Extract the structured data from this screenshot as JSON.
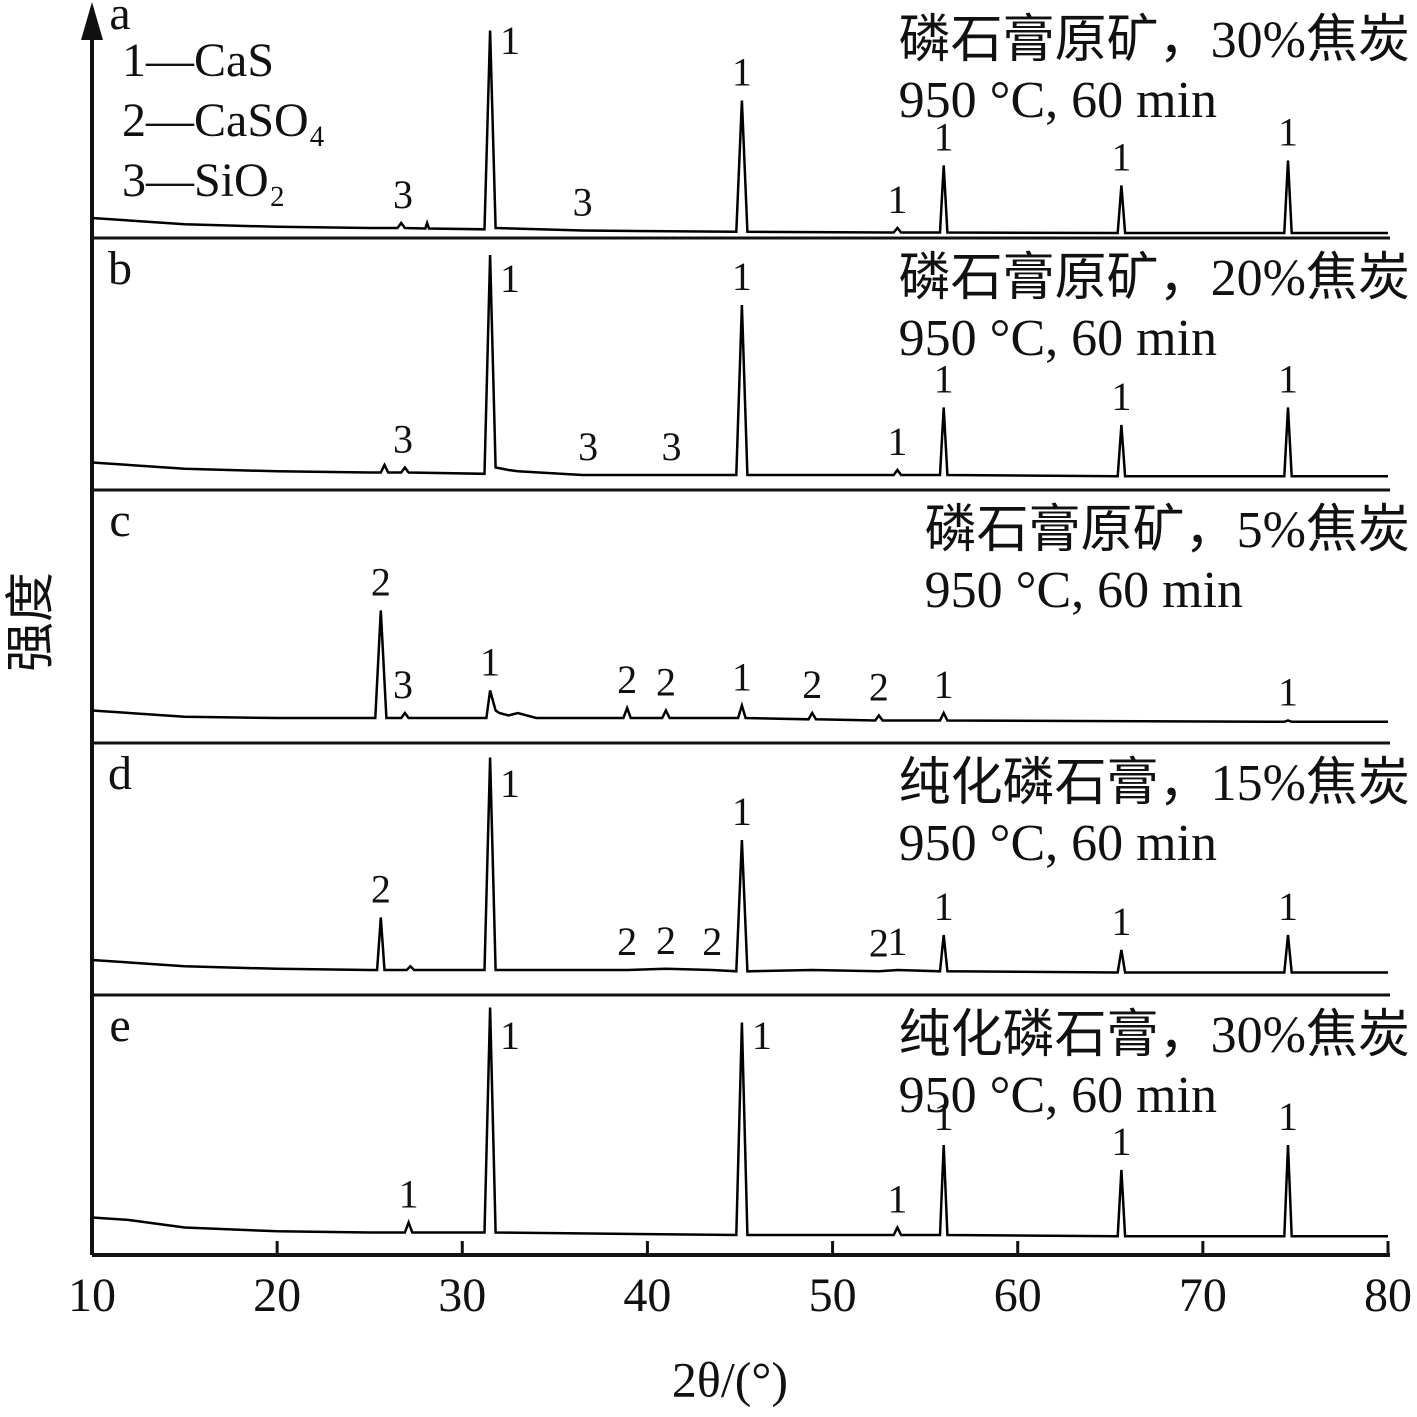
{
  "chart_data": {
    "type": "line",
    "xlabel": "2θ/(°)",
    "ylabel": "强度",
    "xlim": [
      10,
      80
    ],
    "xticks": [
      10,
      20,
      30,
      40,
      50,
      60,
      70,
      80
    ],
    "ylim": [
      0,
      100
    ],
    "grid": false,
    "legend": [
      "1—CaS",
      "2—CaSO₄",
      "3—SiO₂"
    ],
    "series": [
      {
        "name": "a",
        "color": "#000000",
        "conditions": [
          "磷石膏原矿，30%焦炭",
          "950 °C, 60 min"
        ],
        "x": [
          10,
          12,
          15,
          20,
          25,
          26.5,
          26.7,
          26.9,
          28,
          28.1,
          28.2,
          31.2,
          31.5,
          31.8,
          36.5,
          44.8,
          45.1,
          45.4,
          53.3,
          53.5,
          53.7,
          55.8,
          56.0,
          56.2,
          65.4,
          65.6,
          65.8,
          74.4,
          74.6,
          74.8,
          80
        ],
        "values": [
          8,
          7,
          5.5,
          4.5,
          4,
          4,
          6,
          4,
          3.8,
          6,
          3.8,
          3.5,
          83,
          4,
          3,
          2.5,
          55,
          2.5,
          2.2,
          4,
          2.2,
          2.2,
          29,
          2.2,
          2,
          21,
          2,
          2,
          31,
          2,
          2
        ],
        "peaks": [
          {
            "x": 26.8,
            "text": "3"
          },
          {
            "x": 31.5,
            "text": "1"
          },
          {
            "x": 36.5,
            "text": "3"
          },
          {
            "x": 45.1,
            "text": "1"
          },
          {
            "x": 53.5,
            "text": "1"
          },
          {
            "x": 56.0,
            "text": "1"
          },
          {
            "x": 65.6,
            "text": "1"
          },
          {
            "x": 74.6,
            "text": "1"
          }
        ]
      },
      {
        "name": "b",
        "color": "#000000",
        "conditions": [
          "磷石膏原矿，20%焦炭",
          "950 °C, 60 min"
        ],
        "x": [
          10,
          12,
          15,
          20,
          25,
          25.6,
          25.8,
          26,
          26.7,
          26.9,
          27.1,
          31.2,
          31.5,
          31.8,
          32.5,
          33,
          36.5,
          41.5,
          44.8,
          45.1,
          45.4,
          53.3,
          53.5,
          53.7,
          55.8,
          56.0,
          56.2,
          65.4,
          65.6,
          65.8,
          74.4,
          74.6,
          74.8,
          80
        ],
        "values": [
          11,
          10,
          8.5,
          7.5,
          7,
          7,
          10,
          7,
          7,
          9,
          7,
          6.5,
          94,
          9,
          8,
          7.5,
          6,
          6,
          6,
          74,
          6,
          6,
          8,
          6,
          6,
          33,
          6,
          5.5,
          26,
          5.5,
          5.5,
          33,
          5.5,
          5.5
        ],
        "peaks": [
          {
            "x": 26.8,
            "text": "3"
          },
          {
            "x": 31.5,
            "text": "1"
          },
          {
            "x": 36.8,
            "text": "3"
          },
          {
            "x": 41.3,
            "text": "3"
          },
          {
            "x": 45.1,
            "text": "1"
          },
          {
            "x": 53.5,
            "text": "1"
          },
          {
            "x": 56.0,
            "text": "1"
          },
          {
            "x": 65.6,
            "text": "1"
          },
          {
            "x": 74.6,
            "text": "1"
          }
        ]
      },
      {
        "name": "c",
        "color": "#000000",
        "conditions": [
          "磷石膏原矿，5%焦炭",
          "950 °C, 60 min"
        ],
        "x": [
          10,
          12,
          15,
          20,
          23,
          25.3,
          25.6,
          25.9,
          26.7,
          26.9,
          27.1,
          31.3,
          31.5,
          31.8,
          32,
          32.5,
          33,
          34,
          38.7,
          38.9,
          39.1,
          40.8,
          41,
          41.2,
          43.5,
          44.9,
          45.1,
          45.3,
          48.7,
          48.9,
          49.1,
          52.3,
          52.5,
          52.7,
          55.8,
          56,
          56.2,
          74.4,
          74.6,
          74.8,
          80
        ],
        "values": [
          13,
          12,
          10.5,
          10,
          10,
          10,
          53,
          10,
          10,
          12,
          10,
          10,
          21,
          13,
          12,
          11,
          12,
          10,
          10,
          14,
          10,
          10,
          13,
          10,
          10,
          10,
          15,
          10,
          9.5,
          12,
          9.5,
          9,
          11,
          9,
          9,
          12,
          9,
          8.5,
          9,
          8.5,
          8.5
        ],
        "peaks": [
          {
            "x": 25.6,
            "text": "2"
          },
          {
            "x": 26.8,
            "text": "3"
          },
          {
            "x": 31.5,
            "text": "1"
          },
          {
            "x": 38.9,
            "text": "2"
          },
          {
            "x": 41.0,
            "text": "2"
          },
          {
            "x": 45.1,
            "text": "1"
          },
          {
            "x": 48.9,
            "text": "2"
          },
          {
            "x": 52.5,
            "text": "2"
          },
          {
            "x": 56.0,
            "text": "1"
          },
          {
            "x": 74.6,
            "text": "1"
          }
        ]
      },
      {
        "name": "d",
        "color": "#000000",
        "conditions": [
          "纯化磷石膏，15%焦炭",
          "950 °C, 60 min"
        ],
        "x": [
          10,
          12,
          15,
          20,
          25,
          25.4,
          25.6,
          25.8,
          27,
          27.2,
          27.4,
          31.2,
          31.5,
          31.8,
          38.9,
          41,
          43.5,
          44.8,
          45.1,
          45.4,
          48.9,
          52.5,
          53.5,
          55.8,
          56,
          56.2,
          65.4,
          65.6,
          65.8,
          74.4,
          74.6,
          74.8,
          80
        ],
        "values": [
          14,
          13,
          11.5,
          10.5,
          10,
          10,
          31,
          10,
          10,
          11.5,
          10,
          10,
          95,
          10,
          10,
          10.5,
          10,
          9.5,
          62,
          9.5,
          10,
          9.5,
          10,
          9.5,
          24,
          9.5,
          9,
          18,
          9,
          9,
          24,
          9,
          9
        ],
        "peaks": [
          {
            "x": 25.6,
            "text": "2"
          },
          {
            "x": 31.5,
            "text": "1"
          },
          {
            "x": 38.9,
            "text": "2"
          },
          {
            "x": 41.0,
            "text": "2"
          },
          {
            "x": 43.5,
            "text": "2"
          },
          {
            "x": 45.1,
            "text": "1"
          },
          {
            "x": 52.5,
            "text": "2"
          },
          {
            "x": 53.5,
            "text": "1"
          },
          {
            "x": 56.0,
            "text": "1"
          },
          {
            "x": 65.6,
            "text": "1"
          },
          {
            "x": 74.6,
            "text": "1"
          }
        ]
      },
      {
        "name": "e",
        "color": "#000000",
        "conditions": [
          "纯化磷石膏，30%焦炭",
          "950 °C, 60 min"
        ],
        "x": [
          10,
          12,
          15,
          20,
          25,
          26.9,
          27.1,
          27.3,
          31.2,
          31.5,
          31.8,
          44.8,
          45.1,
          45.4,
          53.3,
          53.5,
          53.7,
          55.8,
          56,
          56.2,
          65.4,
          65.6,
          65.8,
          74.4,
          74.6,
          74.8,
          80
        ],
        "values": [
          15,
          14,
          11,
          9.5,
          9,
          9,
          13,
          9,
          9,
          99,
          9,
          8,
          93,
          8,
          8,
          11,
          8,
          8,
          44,
          8,
          7.5,
          34,
          7.5,
          7.5,
          44,
          7.5,
          7.5
        ],
        "peaks": [
          {
            "x": 27.1,
            "text": "1"
          },
          {
            "x": 31.5,
            "text": "1"
          },
          {
            "x": 45.1,
            "text": "1"
          },
          {
            "x": 53.5,
            "text": "1"
          },
          {
            "x": 56.0,
            "text": "1"
          },
          {
            "x": 65.6,
            "text": "1"
          },
          {
            "x": 74.6,
            "text": "1"
          }
        ]
      }
    ]
  }
}
